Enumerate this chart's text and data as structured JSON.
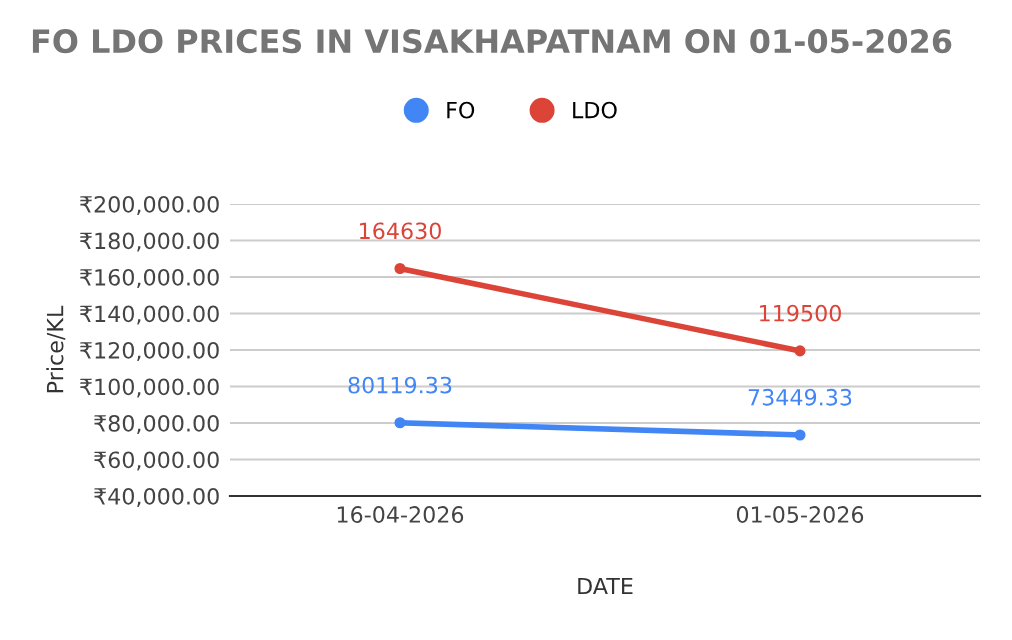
{
  "chart_data": {
    "type": "line",
    "title": "FO LDO PRICES IN VISAKHAPATNAM ON 01-05-2026",
    "xlabel": "DATE",
    "ylabel": "Price/KL",
    "categories": [
      "16-04-2026",
      "01-05-2026"
    ],
    "series": [
      {
        "name": "FO",
        "color": "#4285f4",
        "values": [
          80119.33,
          73449.33
        ]
      },
      {
        "name": "LDO",
        "color": "#db4437",
        "values": [
          164630,
          119500
        ]
      }
    ],
    "ylim": [
      40000,
      200000
    ],
    "yticks": [
      {
        "value": 40000,
        "label": "₹40,000.00"
      },
      {
        "value": 60000,
        "label": "₹60,000.00"
      },
      {
        "value": 80000,
        "label": "₹80,000.00"
      },
      {
        "value": 100000,
        "label": "₹100,000.00"
      },
      {
        "value": 120000,
        "label": "₹120,000.00"
      },
      {
        "value": 140000,
        "label": "₹140,000.00"
      },
      {
        "value": 160000,
        "label": "₹160,000.00"
      },
      {
        "value": 180000,
        "label": "₹180,000.00"
      },
      {
        "value": 200000,
        "label": "₹200,000.00"
      }
    ],
    "grid": "y",
    "legend": "top",
    "marker": "circle",
    "line_style": "solid",
    "data_labels": true
  }
}
